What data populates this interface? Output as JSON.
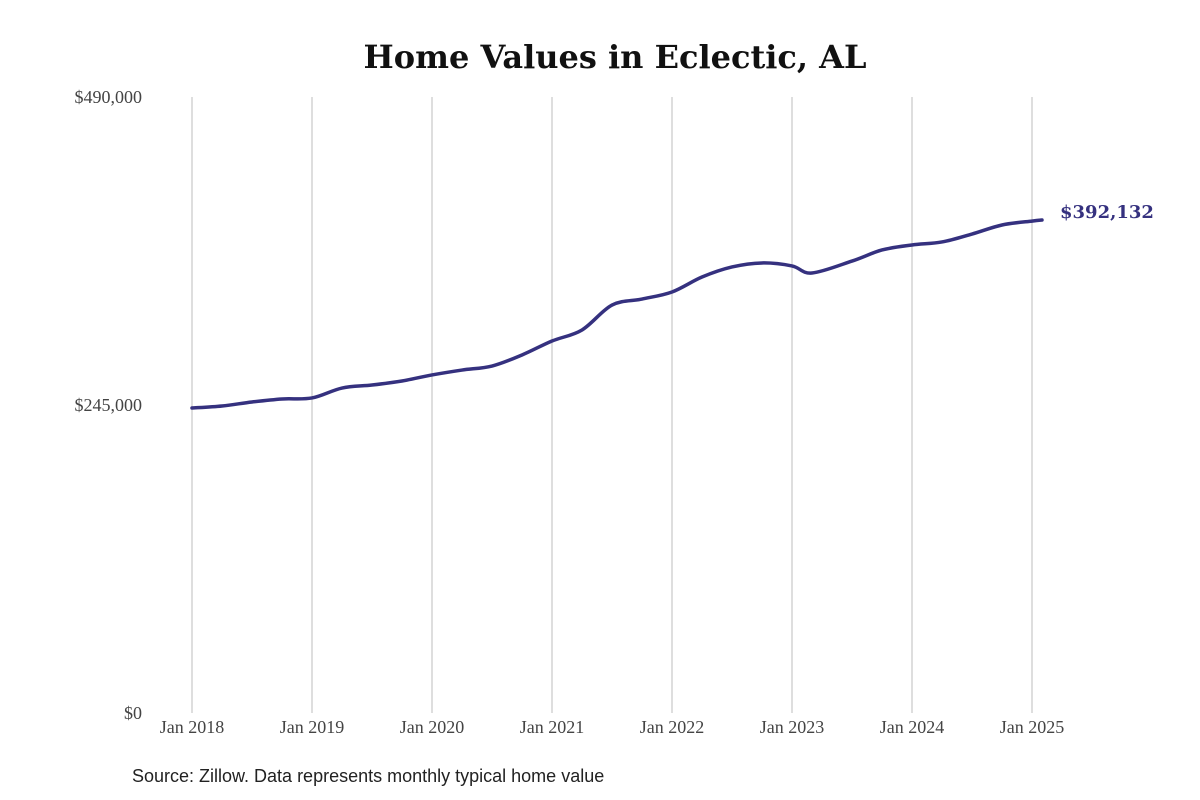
{
  "chart_data": {
    "type": "line",
    "title": "Home Values in Eclectic, AL",
    "source": "Source: Zillow. Data represents monthly typical home value",
    "xlabel": "",
    "ylabel": "",
    "ylim": [
      0,
      490000
    ],
    "y_ticks": [
      0,
      245000,
      490000
    ],
    "y_tick_labels": [
      "$0",
      "$245,000",
      "$490,000"
    ],
    "x_ticks": [
      "2018-01",
      "2019-01",
      "2020-01",
      "2021-01",
      "2022-01",
      "2023-01",
      "2024-01",
      "2025-01"
    ],
    "x_tick_labels": [
      "Jan 2018",
      "Jan 2019",
      "Jan 2020",
      "Jan 2021",
      "Jan 2022",
      "Jan 2023",
      "Jan 2024",
      "Jan 2025"
    ],
    "grid": "vertical",
    "line_color": "#35317f",
    "end_label": "$392,132",
    "series": [
      {
        "x": [
          "2018-01",
          "2018-04",
          "2018-07",
          "2018-10",
          "2019-01",
          "2019-04",
          "2019-07",
          "2019-10",
          "2020-01",
          "2020-04",
          "2020-07",
          "2020-10",
          "2021-01",
          "2021-04",
          "2021-07",
          "2021-10",
          "2022-01",
          "2022-04",
          "2022-07",
          "2022-10",
          "2023-01",
          "2023-03",
          "2023-07",
          "2023-10",
          "2024-01",
          "2024-04",
          "2024-07",
          "2024-10",
          "2025-01",
          "2025-02"
        ],
        "values": [
          242600,
          244200,
          247400,
          249800,
          250600,
          258500,
          260900,
          264100,
          268900,
          272800,
          276000,
          284800,
          295900,
          304700,
          324500,
          329300,
          334900,
          346800,
          354800,
          358000,
          355600,
          350000,
          359500,
          368300,
          372300,
          374700,
          381000,
          388200,
          391300,
          392132
        ]
      }
    ]
  }
}
